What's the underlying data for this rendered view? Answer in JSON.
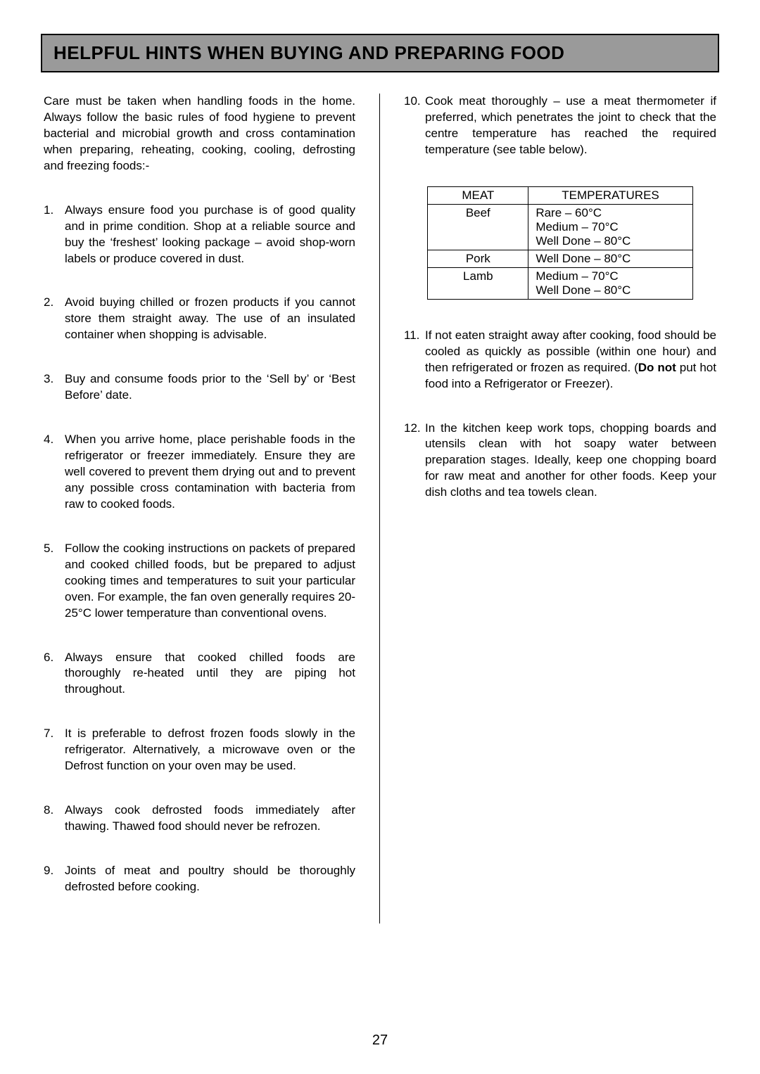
{
  "title": "HELPFUL HINTS WHEN BUYING AND PREPARING FOOD",
  "intro": "Care must be taken when handling foods in the home.  Always follow the basic rules of food hygiene to prevent bacterial and microbial growth and cross contamination when preparing, reheating, cooking, cooling, defrosting and freezing foods:-",
  "left_items": [
    {
      "n": "1.",
      "t": "Always ensure food you purchase is of good quality and in prime condition.  Shop at a reliable source and buy the ‘freshest’ looking package – avoid shop-worn labels or produce covered in dust."
    },
    {
      "n": "2.",
      "t": "Avoid buying chilled or frozen products if you cannot store them straight away.  The use of an insulated container when shopping is advisable."
    },
    {
      "n": "3.",
      "t": "Buy and consume foods prior to the ‘Sell by’ or ‘Best Before’ date."
    },
    {
      "n": "4.",
      "t": "When you arrive home, place perishable foods in the refrigerator or freezer immediately.  Ensure they are well covered to prevent them drying out and to prevent any possible cross contamination with bacteria from raw to cooked foods."
    },
    {
      "n": "5.",
      "t": "Follow the cooking instructions on packets of prepared and cooked chilled foods, but be prepared to adjust cooking times and temperatures to suit your particular oven.  For example, the fan oven generally requires 20-25°C lower temperature than conventional ovens."
    },
    {
      "n": "6.",
      "t": "Always ensure that cooked chilled foods are thoroughly re-heated until they are piping hot throughout."
    },
    {
      "n": "7.",
      "t": "It is preferable to defrost frozen foods slowly in the refrigerator.  Alternatively, a microwave oven or the Defrost function on your oven may be used."
    },
    {
      "n": "8.",
      "t": "Always cook defrosted foods immediately after thawing.  Thawed food should never be refrozen."
    },
    {
      "n": "9.",
      "t": "Joints of meat and poultry should be thoroughly defrosted before cooking."
    }
  ],
  "right_top": {
    "n": "10.",
    "t": "Cook meat thoroughly – use a meat thermometer if preferred, which penetrates the joint to check that the centre temperature has reached the required temperature (see table below)."
  },
  "table": {
    "headers": [
      "MEAT",
      "TEMPERATURES"
    ],
    "rows": [
      {
        "meat": "Beef",
        "temps": "Rare – 60°C\nMedium – 70°C\nWell Done – 80°C"
      },
      {
        "meat": "Pork",
        "temps": "Well Done – 80°C"
      },
      {
        "meat": "Lamb",
        "temps": "Medium – 70°C\nWell Done – 80°C"
      }
    ]
  },
  "right_bottom": [
    {
      "n": "11.",
      "pre": "If not eaten straight away after cooking, food should be cooled as quickly as possible (within one hour) and then refrigerated or frozen as required.  (",
      "bold": "Do not",
      "post": " put hot food into a Refrigerator or Freezer)."
    },
    {
      "n": "12.",
      "t": "In the kitchen keep work tops, chopping boards and utensils clean with hot soapy water between preparation stages.  Ideally, keep one chopping board for raw meat and another for other foods.  Keep your dish cloths and tea towels clean."
    }
  ],
  "page_number": "27",
  "colors": {
    "title_bg": "#9a9a9a",
    "border": "#000000",
    "text": "#000000",
    "page_bg": "#ffffff"
  }
}
